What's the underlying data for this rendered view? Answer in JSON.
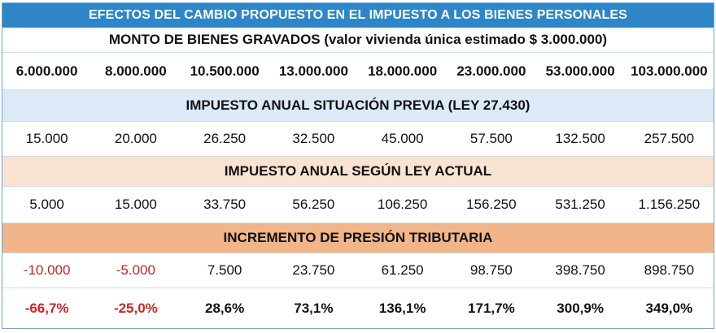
{
  "title": "EFECTOS DEL CAMBIO PROPUESTO EN EL IMPUESTO A LOS BIENES PERSONALES",
  "sections": {
    "monto": {
      "heading": "MONTO DE BIENES GRAVADOS (valor vivienda única estimado $ 3.000.000)",
      "values": [
        "6.000.000",
        "8.000.000",
        "10.500.000",
        "13.000.000",
        "18.000.000",
        "23.000.000",
        "53.000.000",
        "103.000.000"
      ]
    },
    "previo": {
      "heading": "IMPUESTO ANUAL SITUACIÓN PREVIA (LEY 27.430)",
      "values": [
        "15.000",
        "20.000",
        "26.250",
        "32.500",
        "45.000",
        "57.500",
        "132.500",
        "257.500"
      ]
    },
    "actual": {
      "heading": "IMPUESTO ANUAL SEGÚN LEY ACTUAL",
      "values": [
        "5.000",
        "15.000",
        "33.750",
        "56.250",
        "106.250",
        "156.250",
        "531.250",
        "1.156.250"
      ]
    },
    "incremento": {
      "heading": "INCREMENTO DE PRESIÓN TRIBUTARIA",
      "values": [
        "-10.000",
        "-5.000",
        "7.500",
        "23.750",
        "61.250",
        "98.750",
        "398.750",
        "898.750"
      ],
      "percents": [
        "-66,7%",
        "-25,0%",
        "28,6%",
        "73,1%",
        "136,1%",
        "171,7%",
        "300,9%",
        "349,0%"
      ]
    }
  },
  "colors": {
    "title_bg": "#2e86c8",
    "negative": "#c62828",
    "heading_blue": "#dce9f7",
    "heading_peach_light": "#fbe3d3",
    "heading_peach": "#f2b58a"
  }
}
